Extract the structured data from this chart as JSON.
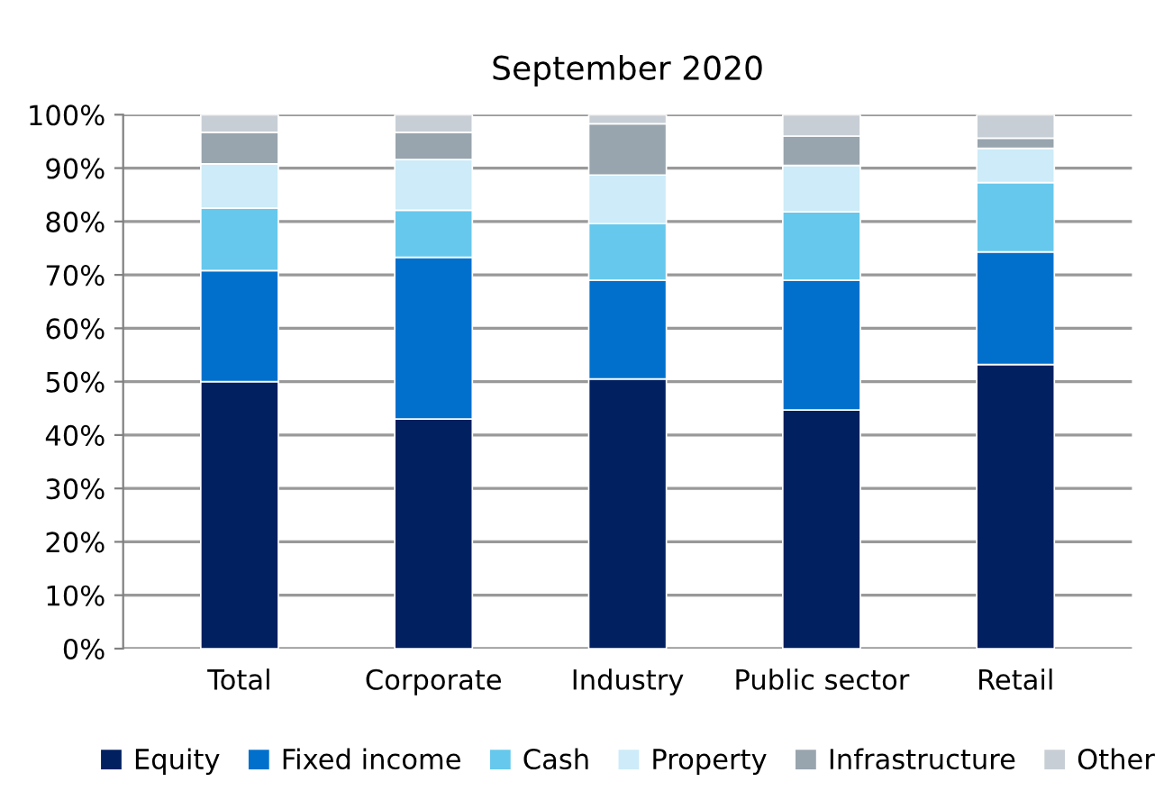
{
  "chart_data": {
    "type": "bar",
    "title": "September 2020",
    "stacked": true,
    "categories": [
      "Total",
      "Corporate",
      "Industry",
      "Public sector",
      "Retail"
    ],
    "series": [
      {
        "name": "Equity",
        "color": "#002060",
        "values": [
          50,
          43,
          50.5,
          44.7,
          53.2
        ]
      },
      {
        "name": "Fixed income",
        "color": "#0070cc",
        "values": [
          20.8,
          30.3,
          18.5,
          24.3,
          21.1
        ]
      },
      {
        "name": "Cash",
        "color": "#66c8ec",
        "values": [
          11.7,
          8.8,
          10.6,
          12.8,
          13
        ]
      },
      {
        "name": "Property",
        "color": "#cdebf8",
        "values": [
          8.3,
          9.5,
          9.1,
          8.7,
          6.4
        ]
      },
      {
        "name": "Infrastructure",
        "color": "#98a4ae",
        "values": [
          5.9,
          5.1,
          9.6,
          5.5,
          1.9
        ]
      },
      {
        "name": "Other",
        "color": "#c8ced5",
        "values": [
          3.3,
          3.3,
          1.7,
          4,
          4.4
        ]
      }
    ],
    "ylim": [
      0,
      100
    ],
    "yticks": [
      {
        "value": 0,
        "label": "0%"
      },
      {
        "value": 10,
        "label": "10%"
      },
      {
        "value": 20,
        "label": "20%"
      },
      {
        "value": 30,
        "label": "30%"
      },
      {
        "value": 40,
        "label": "40%"
      },
      {
        "value": 50,
        "label": "50%"
      },
      {
        "value": 60,
        "label": "60%"
      },
      {
        "value": 70,
        "label": "70%"
      },
      {
        "value": 80,
        "label": "80%"
      },
      {
        "value": 90,
        "label": "90%"
      },
      {
        "value": 100,
        "label": "100%"
      }
    ],
    "grid": "y",
    "legend": "bottom"
  }
}
